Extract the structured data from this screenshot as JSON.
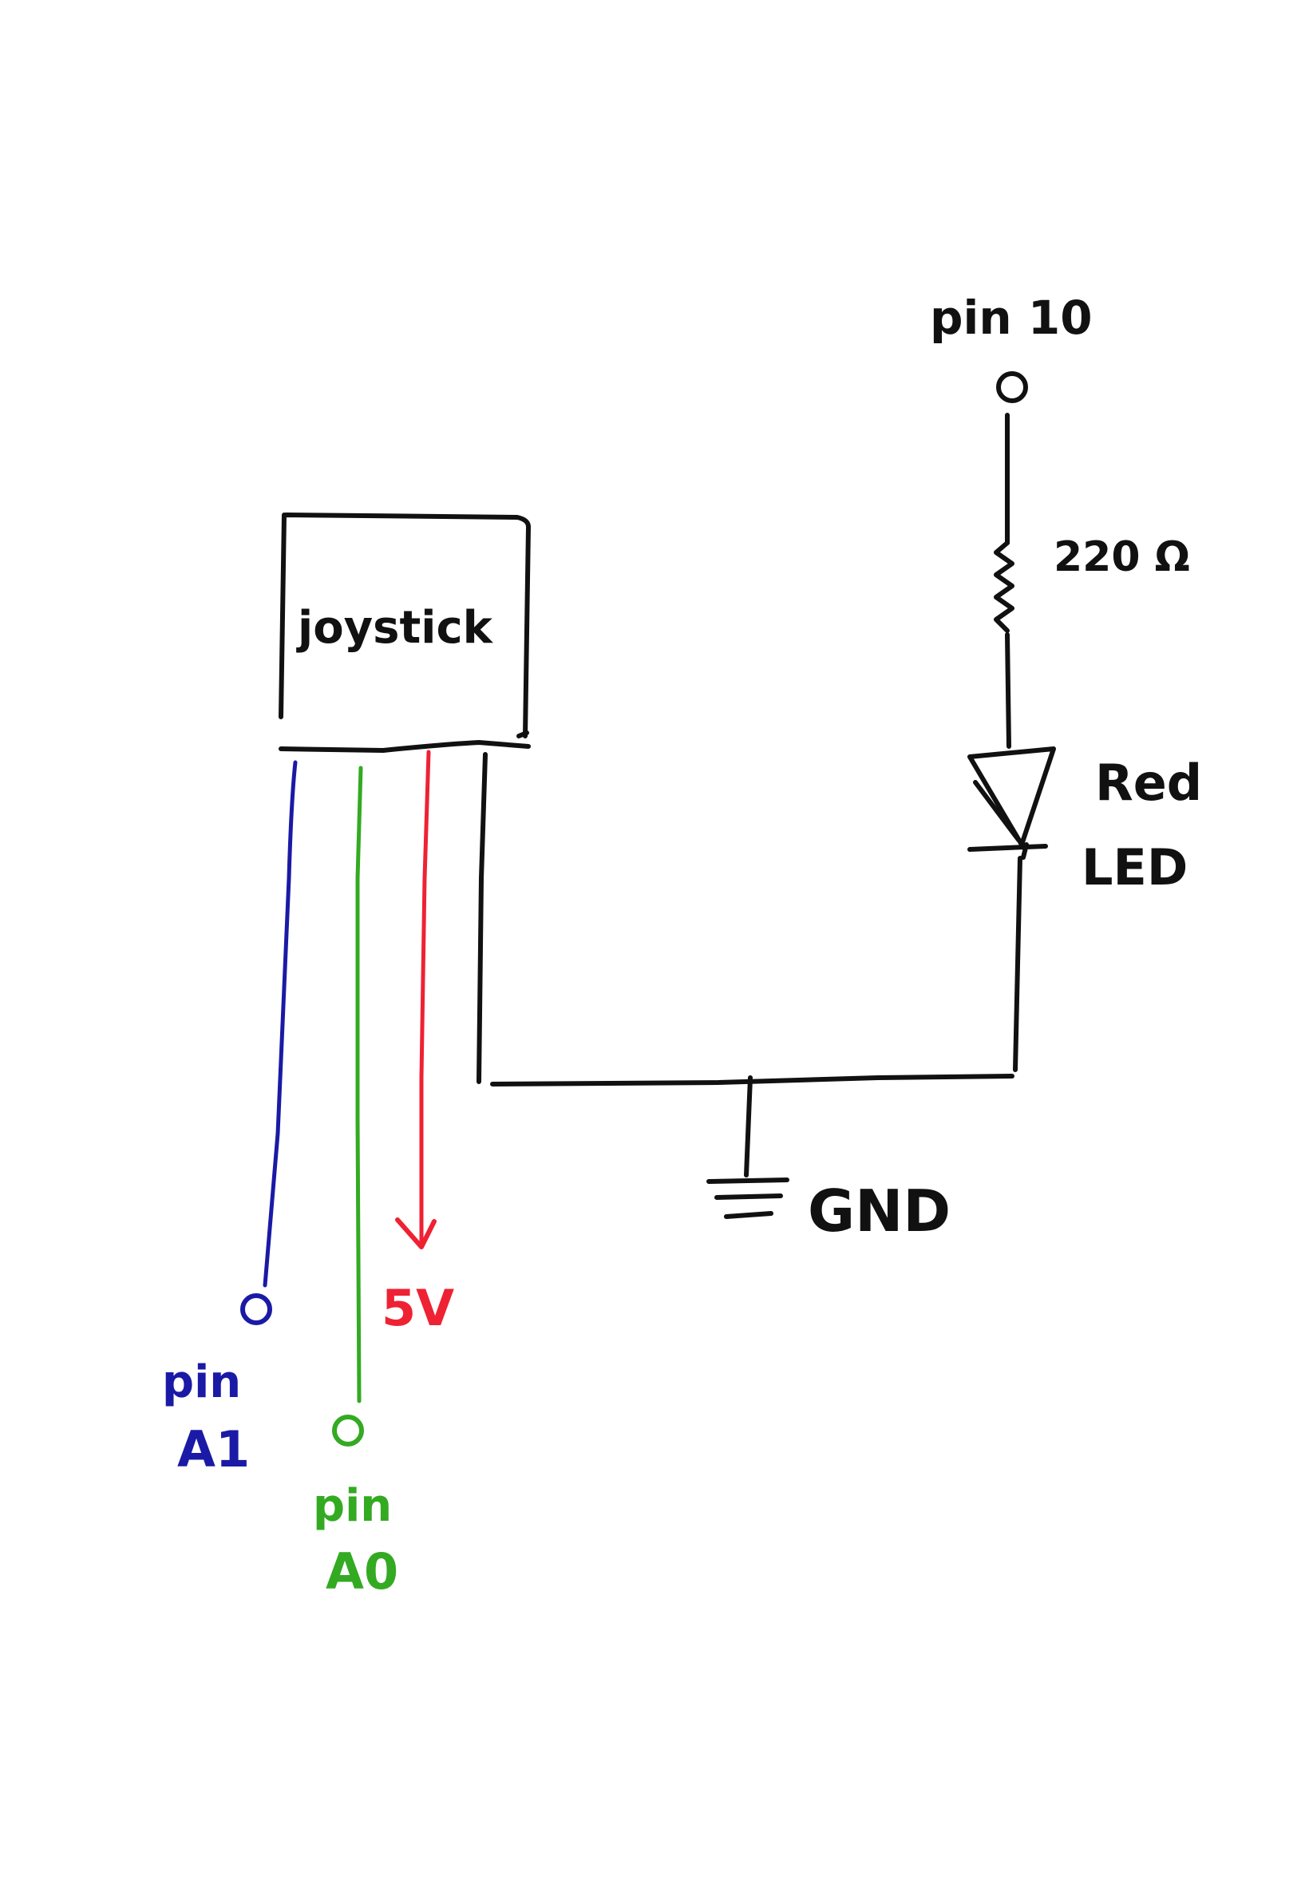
{
  "components": {
    "joystick": {
      "label": "joystick"
    },
    "resistor": {
      "label": "220 Ω"
    },
    "led": {
      "label_line1": "Red",
      "label_line2": "LED"
    },
    "ground": {
      "label": "GND"
    }
  },
  "terminals": {
    "pin10": {
      "label": "pin 10"
    },
    "pinA1": {
      "label_line1": "pin",
      "label_line2": "A1"
    },
    "pinA0": {
      "label_line1": "pin",
      "label_line2": "A0"
    },
    "supply": {
      "label": "5V"
    }
  },
  "colors": {
    "ink": "#111111",
    "pinA1_wire": "#1a1aa6",
    "pinA0_wire": "#33aa22",
    "supply_wire": "#ee2233"
  }
}
